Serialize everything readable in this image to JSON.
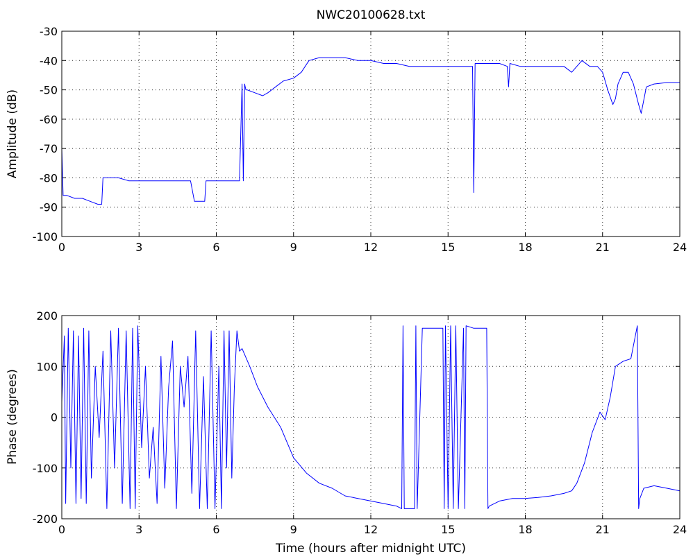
{
  "chart_data": [
    {
      "type": "line",
      "title": "NWC20100628.txt",
      "xlabel": "",
      "ylabel": "Amplitude (dB)",
      "xlim": [
        0,
        24
      ],
      "ylim": [
        -100,
        -30
      ],
      "grid": true,
      "xticks": [
        0,
        3,
        6,
        9,
        12,
        15,
        18,
        21,
        24
      ],
      "yticks": [
        -100,
        -90,
        -80,
        -70,
        -60,
        -50,
        -40,
        -30
      ],
      "series": [
        {
          "color": "#0000ff",
          "x": [
            0,
            0.05,
            0.2,
            0.5,
            0.8,
            1.1,
            1.4,
            1.55,
            1.6,
            1.8,
            2.2,
            2.6,
            3.0,
            3.5,
            4.0,
            4.5,
            5.0,
            5.15,
            5.2,
            5.4,
            5.55,
            5.6,
            5.8,
            6.0,
            6.3,
            6.6,
            6.9,
            7.0,
            7.05,
            7.1,
            7.15,
            7.2,
            7.5,
            7.8,
            8.0,
            8.3,
            8.6,
            9.0,
            9.3,
            9.6,
            10.0,
            10.5,
            11.0,
            11.5,
            12.0,
            12.5,
            13.0,
            13.5,
            14.0,
            14.5,
            15.0,
            15.5,
            15.95,
            16.0,
            16.05,
            16.5,
            17.0,
            17.3,
            17.35,
            17.4,
            17.8,
            18.5,
            19.0,
            19.5,
            19.8,
            20.0,
            20.2,
            20.5,
            20.8,
            21.0,
            21.2,
            21.4,
            21.5,
            21.6,
            21.8,
            22.0,
            22.2,
            22.4,
            22.5,
            22.7,
            23.0,
            23.5,
            24.0
          ],
          "y": [
            -70,
            -86,
            -86,
            -87,
            -87,
            -88,
            -89,
            -89,
            -80,
            -80,
            -80,
            -81,
            -81,
            -81,
            -81,
            -81,
            -81,
            -88,
            -88,
            -88,
            -88,
            -81,
            -81,
            -81,
            -81,
            -81,
            -81,
            -48,
            -81,
            -48,
            -50,
            -50,
            -51,
            -52,
            -51,
            -49,
            -47,
            -46,
            -44,
            -40,
            -39,
            -39,
            -39,
            -40,
            -40,
            -41,
            -41,
            -42,
            -42,
            -42,
            -42,
            -42,
            -42,
            -85,
            -41,
            -41,
            -41,
            -42,
            -49,
            -41,
            -42,
            -42,
            -42,
            -42,
            -44,
            -42,
            -40,
            -42,
            -42,
            -44,
            -50,
            -55,
            -53,
            -48,
            -44,
            -44,
            -48,
            -55,
            -58,
            -49,
            -48,
            -47.5,
            -47.5
          ]
        }
      ]
    },
    {
      "type": "line",
      "title": "",
      "xlabel": "Time (hours after midnight UTC)",
      "ylabel": "Phase (degrees)",
      "xlim": [
        0,
        24
      ],
      "ylim": [
        -200,
        200
      ],
      "grid": true,
      "xticks": [
        0,
        3,
        6,
        9,
        12,
        15,
        18,
        21,
        24
      ],
      "yticks": [
        -200,
        -100,
        0,
        100,
        200
      ],
      "series": [
        {
          "color": "#0000ff",
          "x": [
            0,
            0.1,
            0.15,
            0.25,
            0.35,
            0.45,
            0.55,
            0.65,
            0.75,
            0.85,
            0.95,
            1.05,
            1.15,
            1.3,
            1.45,
            1.6,
            1.75,
            1.9,
            2.05,
            2.2,
            2.35,
            2.5,
            2.65,
            2.75,
            2.85,
            2.95,
            3.1,
            3.25,
            3.4,
            3.55,
            3.7,
            3.85,
            4.0,
            4.15,
            4.3,
            4.45,
            4.6,
            4.75,
            4.9,
            5.05,
            5.2,
            5.35,
            5.5,
            5.65,
            5.8,
            5.95,
            6.1,
            6.2,
            6.3,
            6.4,
            6.5,
            6.6,
            6.7,
            6.8,
            6.9,
            7.0,
            7.3,
            7.6,
            8.0,
            8.5,
            9.0,
            9.5,
            10.0,
            10.5,
            11.0,
            11.5,
            12.0,
            12.5,
            13.0,
            13.2,
            13.25,
            13.3,
            13.5,
            13.7,
            13.75,
            13.8,
            14.0,
            14.5,
            14.8,
            14.85,
            14.9,
            15.0,
            15.1,
            15.2,
            15.3,
            15.4,
            15.6,
            15.65,
            15.7,
            16.0,
            16.5,
            16.55,
            16.6,
            17.0,
            17.5,
            18.0,
            18.5,
            19.0,
            19.5,
            19.8,
            20.0,
            20.3,
            20.6,
            20.9,
            21.1,
            21.3,
            21.5,
            21.8,
            22.1,
            22.35,
            22.4,
            22.45,
            22.6,
            23.0,
            23.5,
            24.0
          ],
          "y": [
            30,
            160,
            -170,
            175,
            -100,
            170,
            -170,
            160,
            -160,
            175,
            -170,
            170,
            -120,
            100,
            -40,
            130,
            -180,
            170,
            -100,
            175,
            -170,
            170,
            -180,
            175,
            -180,
            180,
            -60,
            100,
            -120,
            -20,
            -170,
            120,
            -140,
            60,
            150,
            -180,
            100,
            20,
            120,
            -150,
            170,
            -180,
            80,
            -180,
            170,
            -180,
            100,
            -180,
            170,
            -100,
            170,
            -120,
            60,
            170,
            130,
            135,
            100,
            60,
            20,
            -20,
            -80,
            -110,
            -130,
            -140,
            -155,
            -160,
            -165,
            -170,
            -175,
            -180,
            180,
            -180,
            -180,
            -180,
            180,
            -180,
            175,
            175,
            175,
            -180,
            180,
            -180,
            180,
            -180,
            180,
            -180,
            175,
            -180,
            180,
            175,
            175,
            -180,
            -175,
            -165,
            -160,
            -160,
            -158,
            -155,
            -150,
            -145,
            -130,
            -90,
            -30,
            10,
            -5,
            40,
            100,
            110,
            115,
            180,
            -180,
            -160,
            -140,
            -135,
            -140,
            -145
          ]
        }
      ]
    }
  ]
}
